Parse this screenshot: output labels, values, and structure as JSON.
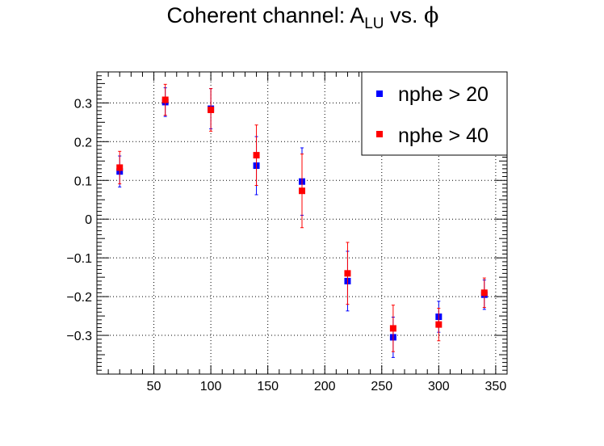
{
  "chart_data": {
    "type": "scatter",
    "title": {
      "prefix": "Coherent channel: A",
      "subscript": "LU",
      "suffix": " vs. ",
      "symbol": "ϕ"
    },
    "xlabel": "",
    "ylabel": "",
    "xlim": [
      0,
      360
    ],
    "ylim": [
      -0.4,
      0.38
    ],
    "x_ticks": [
      50,
      100,
      150,
      200,
      250,
      300,
      350
    ],
    "x_tick_labels": [
      "50",
      "100",
      "150",
      "200",
      "250",
      "300",
      "350"
    ],
    "y_ticks": [
      -0.3,
      -0.2,
      -0.1,
      0,
      0.1,
      0.2,
      0.3
    ],
    "y_tick_labels": [
      "−0.3",
      "−0.2",
      "−0.1",
      "0",
      "0.1",
      "0.2",
      "0.3"
    ],
    "grid": true,
    "legend_placement": "top-right",
    "series": [
      {
        "name": "nphe > 20",
        "color": "#0000ff",
        "x": [
          20,
          60,
          100,
          140,
          180,
          220,
          260,
          300,
          340
        ],
        "y": [
          0.123,
          0.302,
          0.285,
          0.138,
          0.097,
          -0.16,
          -0.305,
          -0.252,
          -0.195
        ],
        "err": [
          0.04,
          0.037,
          0.052,
          0.075,
          0.087,
          0.077,
          0.052,
          0.04,
          0.038
        ]
      },
      {
        "name": "nphe > 40",
        "color": "#ff0000",
        "x": [
          20,
          60,
          100,
          140,
          180,
          220,
          260,
          300,
          340
        ],
        "y": [
          0.133,
          0.308,
          0.282,
          0.165,
          0.073,
          -0.14,
          -0.282,
          -0.272,
          -0.19
        ],
        "err": [
          0.042,
          0.04,
          0.055,
          0.078,
          0.095,
          0.08,
          0.06,
          0.042,
          0.038
        ]
      }
    ]
  }
}
